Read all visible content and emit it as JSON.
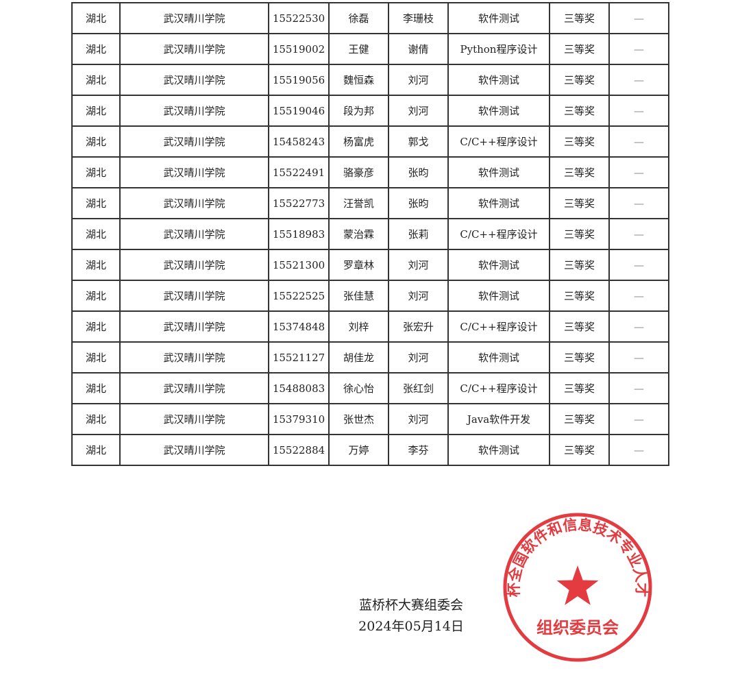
{
  "table": {
    "rows": [
      [
        "湖北",
        "武汉晴川学院",
        "15522530",
        "徐磊",
        "李珊枝",
        "软件测试",
        "三等奖",
        "—"
      ],
      [
        "湖北",
        "武汉晴川学院",
        "15519002",
        "王健",
        "谢倩",
        "Python程序设计",
        "三等奖",
        "—"
      ],
      [
        "湖北",
        "武汉晴川学院",
        "15519056",
        "魏恒森",
        "刘河",
        "软件测试",
        "三等奖",
        "—"
      ],
      [
        "湖北",
        "武汉晴川学院",
        "15519046",
        "段为邦",
        "刘河",
        "软件测试",
        "三等奖",
        "—"
      ],
      [
        "湖北",
        "武汉晴川学院",
        "15458243",
        "杨富虎",
        "郭戈",
        "C/C++程序设计",
        "三等奖",
        "—"
      ],
      [
        "湖北",
        "武汉晴川学院",
        "15522491",
        "骆豪彦",
        "张昀",
        "软件测试",
        "三等奖",
        "—"
      ],
      [
        "湖北",
        "武汉晴川学院",
        "15522773",
        "汪誉凯",
        "张昀",
        "软件测试",
        "三等奖",
        "—"
      ],
      [
        "湖北",
        "武汉晴川学院",
        "15518983",
        "蒙治霖",
        "张莉",
        "C/C++程序设计",
        "三等奖",
        "—"
      ],
      [
        "湖北",
        "武汉晴川学院",
        "15521300",
        "罗章林",
        "刘河",
        "软件测试",
        "三等奖",
        "—"
      ],
      [
        "湖北",
        "武汉晴川学院",
        "15522525",
        "张佳慧",
        "刘河",
        "软件测试",
        "三等奖",
        "—"
      ],
      [
        "湖北",
        "武汉晴川学院",
        "15374848",
        "刘梓",
        "张宏升",
        "C/C++程序设计",
        "三等奖",
        "—"
      ],
      [
        "湖北",
        "武汉晴川学院",
        "15521127",
        "胡佳龙",
        "刘河",
        "软件测试",
        "三等奖",
        "—"
      ],
      [
        "湖北",
        "武汉晴川学院",
        "15488083",
        "徐心怡",
        "张红剑",
        "C/C++程序设计",
        "三等奖",
        "—"
      ],
      [
        "湖北",
        "武汉晴川学院",
        "15379310",
        "张世杰",
        "刘河",
        "Java软件开发",
        "三等奖",
        "—"
      ],
      [
        "湖北",
        "武汉晴川学院",
        "15522884",
        "万婷",
        "李芬",
        "软件测试",
        "三等奖",
        "—"
      ]
    ]
  },
  "signature": {
    "org": "蓝桥杯大赛组委会",
    "date": "2024年05月14日"
  },
  "stamp": {
    "ring_text": "蓝桥杯全国软件和信息技术专业人才大赛",
    "bottom_text": "组织委员会",
    "color": "#e0262b"
  }
}
